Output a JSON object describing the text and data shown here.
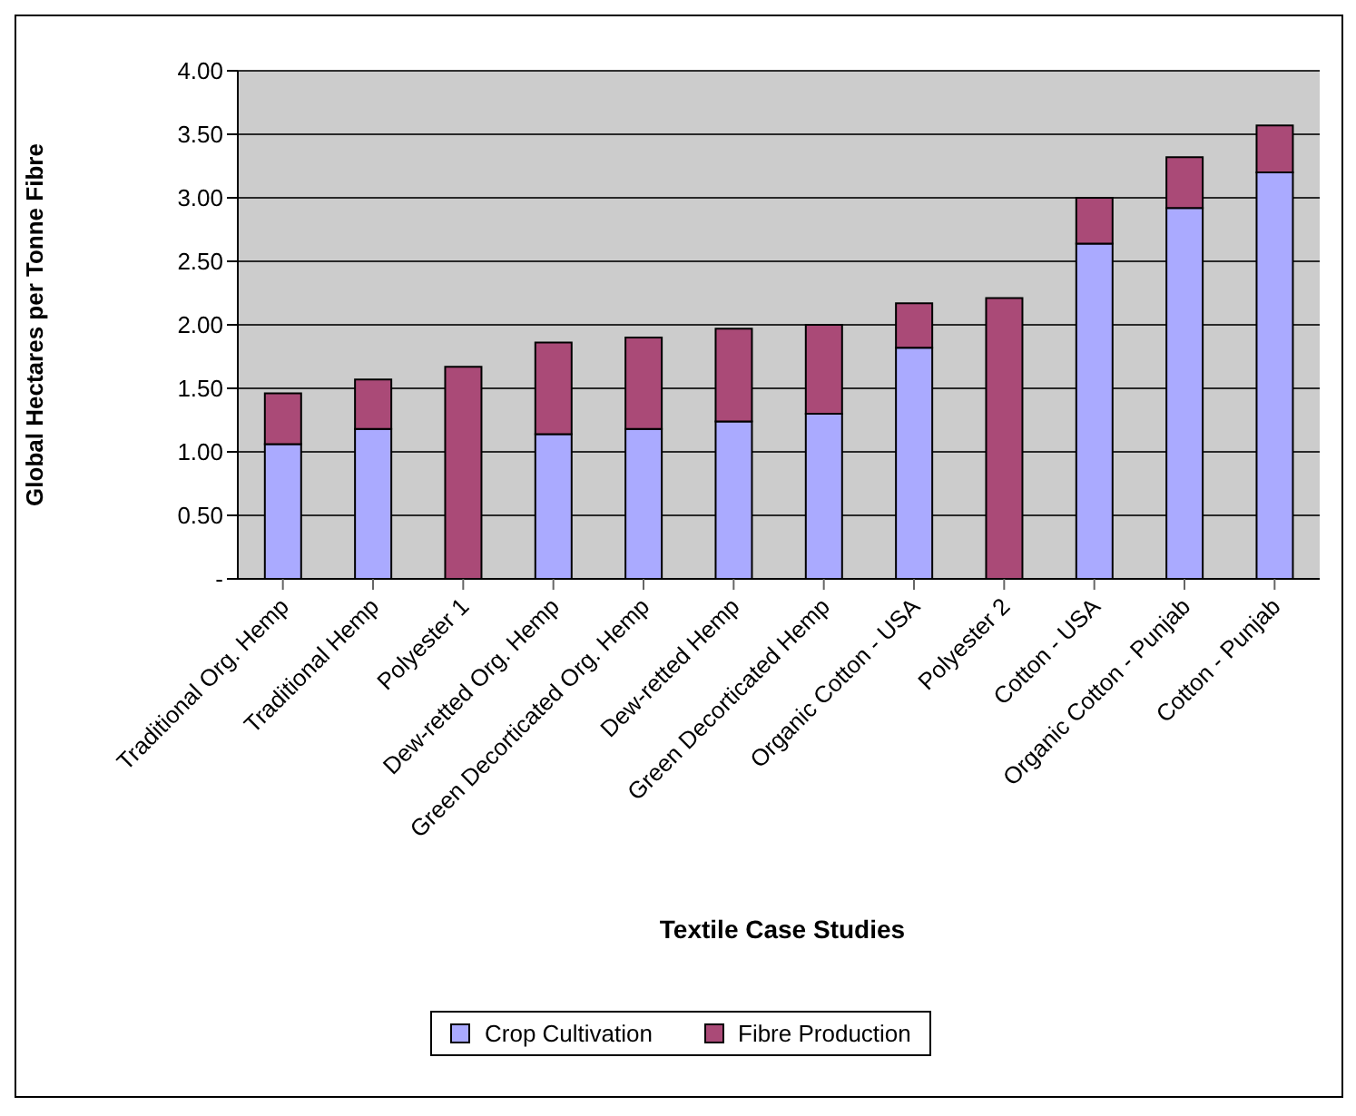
{
  "chart_data": {
    "type": "bar",
    "stacked": true,
    "xlabel": "Textile Case Studies",
    "ylabel": "Global Hectares per Tonne Fibre",
    "categories": [
      "Traditional Org. Hemp",
      "Traditional Hemp",
      "Polyester  1",
      "Dew-retted Org. Hemp",
      "Green Decorticated Org. Hemp",
      "Dew-retted Hemp",
      "Green Decorticated Hemp",
      "Organic Cotton - USA",
      "Polyester 2",
      "Cotton - USA",
      "Organic Cotton - Punjab",
      "Cotton - Punjab"
    ],
    "series": [
      {
        "name": "Crop Cultivation",
        "color": "#aaaaff",
        "values": [
          1.06,
          1.18,
          0,
          1.14,
          1.18,
          1.24,
          1.3,
          1.82,
          0,
          2.64,
          2.92,
          3.2
        ]
      },
      {
        "name": "Fibre Production",
        "color": "#aa4a77",
        "values": [
          0.4,
          0.39,
          1.67,
          0.72,
          0.72,
          0.73,
          0.7,
          0.35,
          2.21,
          0.36,
          0.4,
          0.37
        ]
      }
    ],
    "ylim": [
      0,
      4
    ],
    "yticks": [
      {
        "value": 0,
        "label": "-"
      },
      {
        "value": 0.5,
        "label": "0.50"
      },
      {
        "value": 1,
        "label": "1.00"
      },
      {
        "value": 1.5,
        "label": "1.50"
      },
      {
        "value": 2,
        "label": "2.00"
      },
      {
        "value": 2.5,
        "label": "2.50"
      },
      {
        "value": 3,
        "label": "3.00"
      },
      {
        "value": 3.5,
        "label": "3.50"
      },
      {
        "value": 4,
        "label": "4.00"
      }
    ],
    "grid": "y",
    "legend": "bottom"
  }
}
